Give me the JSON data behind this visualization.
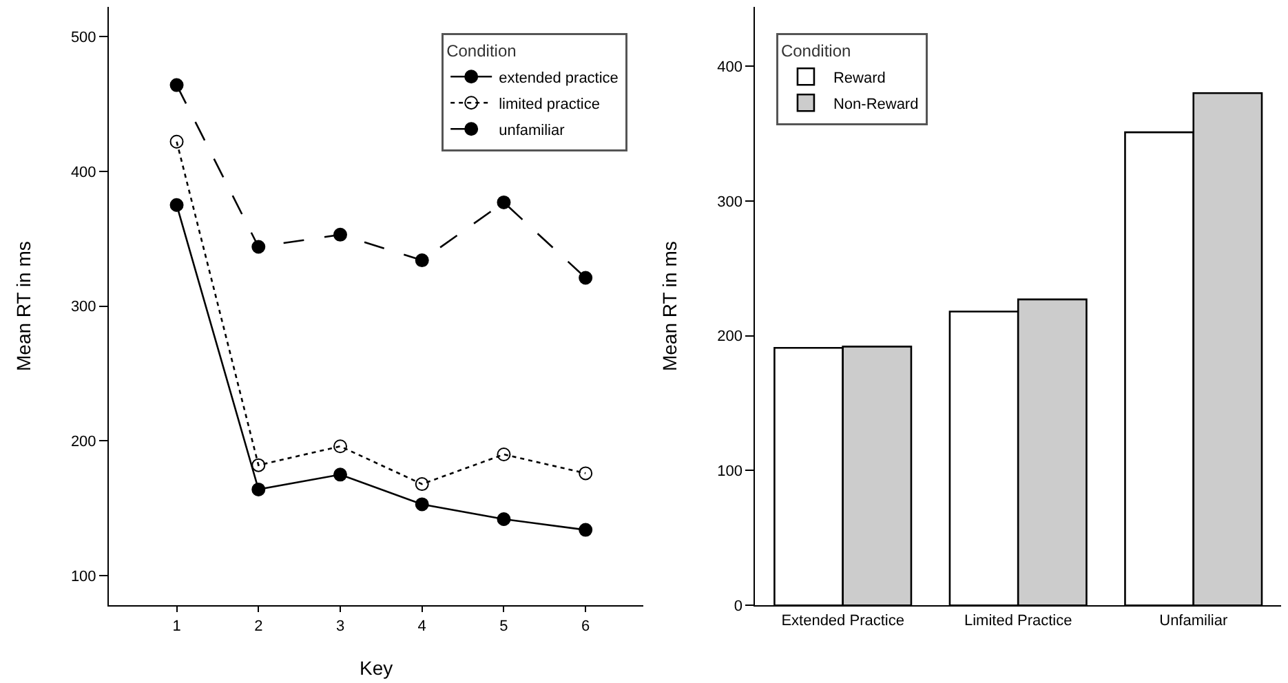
{
  "chart_data": [
    {
      "type": "line",
      "xlabel": "Key",
      "ylabel": "Mean RT in ms",
      "legend_title": "Condition",
      "legend": "top right",
      "grid": false,
      "x": [
        1,
        2,
        3,
        4,
        5,
        6
      ],
      "xlim": [
        0.17,
        6.71
      ],
      "xticks": [
        1,
        2,
        3,
        4,
        5,
        6
      ],
      "ylim": [
        78,
        522
      ],
      "yticks": [
        100,
        200,
        300,
        400,
        500
      ],
      "series": [
        {
          "name": "extended practice",
          "color": "#000000",
          "line_style": "solid",
          "marker": "circle",
          "values": [
            375,
            164,
            175,
            153,
            142,
            134
          ]
        },
        {
          "name": "limited practice",
          "color": "#000000",
          "line_style": "dotted",
          "marker": "circle-open",
          "values": [
            422,
            182,
            196,
            168,
            190,
            176
          ]
        },
        {
          "name": "unfamiliar",
          "color": "#000000",
          "line_style": "dashed",
          "marker": "circle",
          "values": [
            464,
            344,
            353,
            334,
            377,
            321
          ]
        }
      ]
    },
    {
      "type": "bar",
      "ylabel": "Mean RT in ms",
      "legend_title": "Condition",
      "legend": "top left",
      "grid": false,
      "categories": [
        "Extended Practice",
        "Limited Practice",
        "Unfamiliar"
      ],
      "ylim": [
        0,
        444
      ],
      "yticks": [
        0,
        100,
        200,
        300,
        400
      ],
      "series": [
        {
          "name": "Reward",
          "color": "#ffffff",
          "values": [
            191,
            218,
            351
          ]
        },
        {
          "name": "Non-Reward",
          "color": "#cccccc",
          "values": [
            192,
            227,
            380
          ]
        }
      ]
    }
  ]
}
